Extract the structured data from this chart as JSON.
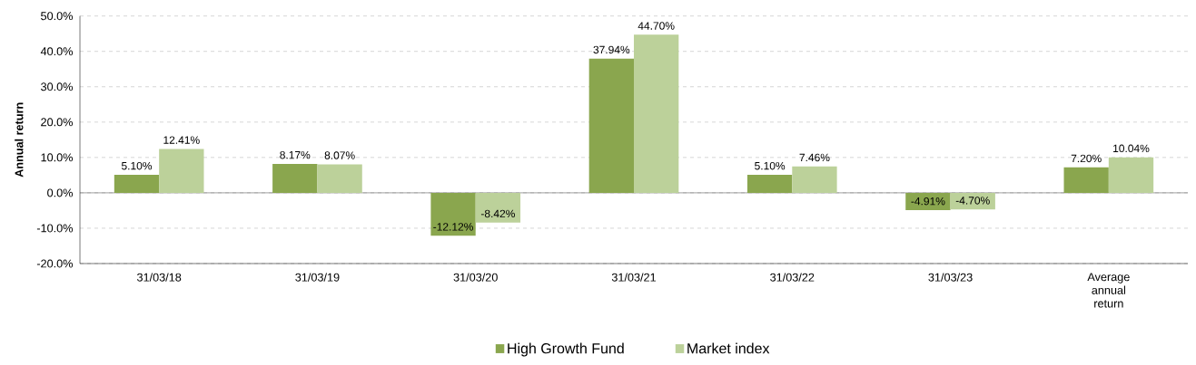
{
  "chart_data": {
    "type": "bar",
    "ylabel": "Annual return",
    "categories": [
      "31/03/18",
      "31/03/19",
      "31/03/20",
      "31/03/21",
      "31/03/22",
      "31/03/23",
      "Average annual return"
    ],
    "series": [
      {
        "name": "High Growth Fund",
        "color": "#8aa64e",
        "values": [
          5.1,
          8.17,
          -12.12,
          37.94,
          5.1,
          -4.91,
          7.2
        ],
        "value_labels": [
          "5.10%",
          "8.17%",
          "-12.12%",
          "37.94%",
          "5.10%",
          "-4.91%",
          "7.20%"
        ]
      },
      {
        "name": "Market index",
        "color": "#bcd19a",
        "values": [
          12.41,
          8.07,
          -8.42,
          44.7,
          7.46,
          -4.7,
          10.04
        ],
        "value_labels": [
          "12.41%",
          "8.07%",
          "-8.42%",
          "44.70%",
          "7.46%",
          "-4.70%",
          "10.04%"
        ]
      }
    ],
    "ylim": [
      -20,
      50
    ],
    "yticks": [
      {
        "value": -20,
        "label": "-20.0%"
      },
      {
        "value": -10,
        "label": "-10.0%"
      },
      {
        "value": 0,
        "label": "0.0%"
      },
      {
        "value": 10,
        "label": "10.0%"
      },
      {
        "value": 20,
        "label": "20.0%"
      },
      {
        "value": 30,
        "label": "30.0%"
      },
      {
        "value": 40,
        "label": "40.0%"
      },
      {
        "value": 50,
        "label": "50.0%"
      }
    ],
    "grid": "y",
    "legend": "bottom"
  }
}
